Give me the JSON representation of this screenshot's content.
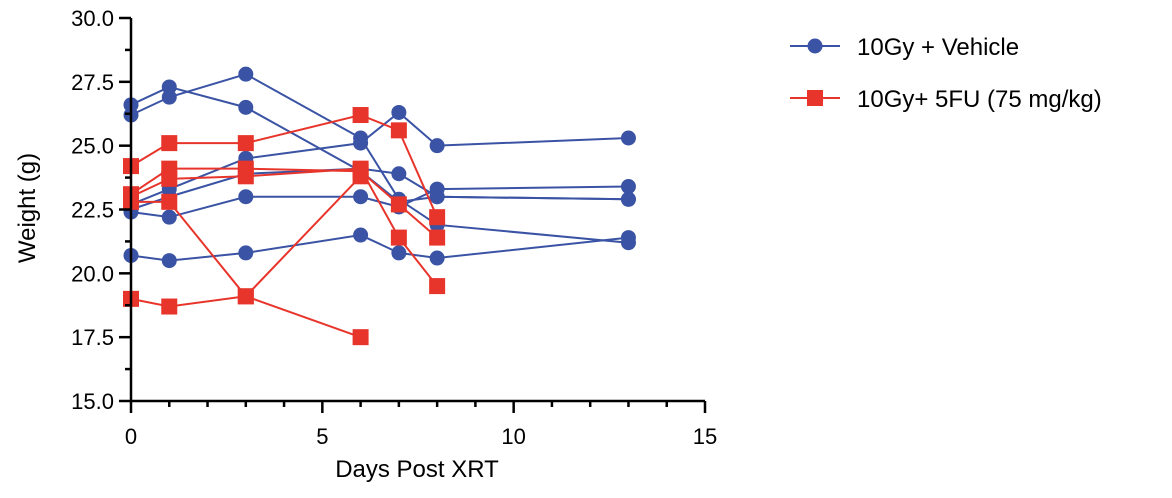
{
  "chart_data": {
    "type": "line",
    "title": "",
    "xlabel": "Days Post XRT",
    "ylabel": "Weight (g)",
    "xlim": [
      0,
      15
    ],
    "ylim": [
      15.0,
      30.0
    ],
    "x_ticks": [
      "0",
      "5",
      "10",
      "15"
    ],
    "y_ticks": [
      "15.0",
      "17.5",
      "20.0",
      "22.5",
      "25.0",
      "27.5",
      "30.0"
    ],
    "grid": false,
    "legend_position": "right",
    "series": [
      {
        "name": "10Gy + Vehicle",
        "color": "#3a53a4",
        "marker": "circle",
        "subjects": [
          [
            [
              0,
              26.6
            ],
            [
              1,
              27.3
            ],
            [
              3,
              26.5
            ],
            [
              6,
              24.0
            ],
            [
              7,
              22.8
            ],
            [
              8,
              23.0
            ],
            [
              13,
              22.9
            ]
          ],
          [
            [
              0,
              26.2
            ],
            [
              1,
              26.9
            ],
            [
              3,
              27.8
            ],
            [
              6,
              25.3
            ],
            [
              7,
              22.9
            ],
            [
              8,
              21.9
            ],
            [
              13,
              21.2
            ]
          ],
          [
            [
              0,
              22.7
            ],
            [
              1,
              23.3
            ],
            [
              3,
              24.5
            ],
            [
              6,
              25.1
            ],
            [
              7,
              26.3
            ],
            [
              8,
              25.0
            ],
            [
              13,
              25.3
            ]
          ],
          [
            [
              0,
              22.4
            ],
            [
              1,
              22.2
            ],
            [
              3,
              23.0
            ],
            [
              6,
              23.0
            ],
            [
              7,
              22.6
            ],
            [
              8,
              23.3
            ],
            [
              13,
              23.4
            ]
          ],
          [
            [
              0,
              20.7
            ],
            [
              1,
              20.5
            ],
            [
              3,
              20.8
            ],
            [
              6,
              21.5
            ],
            [
              7,
              20.8
            ],
            [
              8,
              20.6
            ],
            [
              13,
              21.4
            ]
          ],
          [
            [
              0,
              22.5
            ],
            [
              1,
              23.0
            ],
            [
              3,
              23.9
            ],
            [
              6,
              24.1
            ],
            [
              7,
              23.9
            ],
            [
              8,
              23.0
            ],
            [
              13,
              22.9
            ]
          ]
        ]
      },
      {
        "name": "10Gy+ 5FU (75 mg/kg)",
        "color": "#e8352b",
        "marker": "square",
        "subjects": [
          [
            [
              0,
              24.2
            ],
            [
              1,
              25.1
            ],
            [
              3,
              25.1
            ],
            [
              6,
              26.2
            ],
            [
              7,
              25.6
            ],
            [
              8,
              22.2
            ]
          ],
          [
            [
              0,
              23.1
            ],
            [
              1,
              24.1
            ],
            [
              3,
              24.1
            ],
            [
              6,
              24.0
            ],
            [
              7,
              22.7
            ],
            [
              8,
              21.4
            ]
          ],
          [
            [
              0,
              23.0
            ],
            [
              1,
              23.7
            ],
            [
              3,
              23.8
            ],
            [
              6,
              24.1
            ],
            [
              7,
              21.4
            ],
            [
              8,
              19.5
            ]
          ],
          [
            [
              0,
              22.8
            ],
            [
              1,
              22.8
            ],
            [
              3,
              19.1
            ],
            [
              6,
              23.8
            ]
          ],
          [
            [
              0,
              19.0
            ],
            [
              1,
              18.7
            ],
            [
              3,
              19.1
            ],
            [
              6,
              17.5
            ]
          ]
        ]
      }
    ]
  }
}
